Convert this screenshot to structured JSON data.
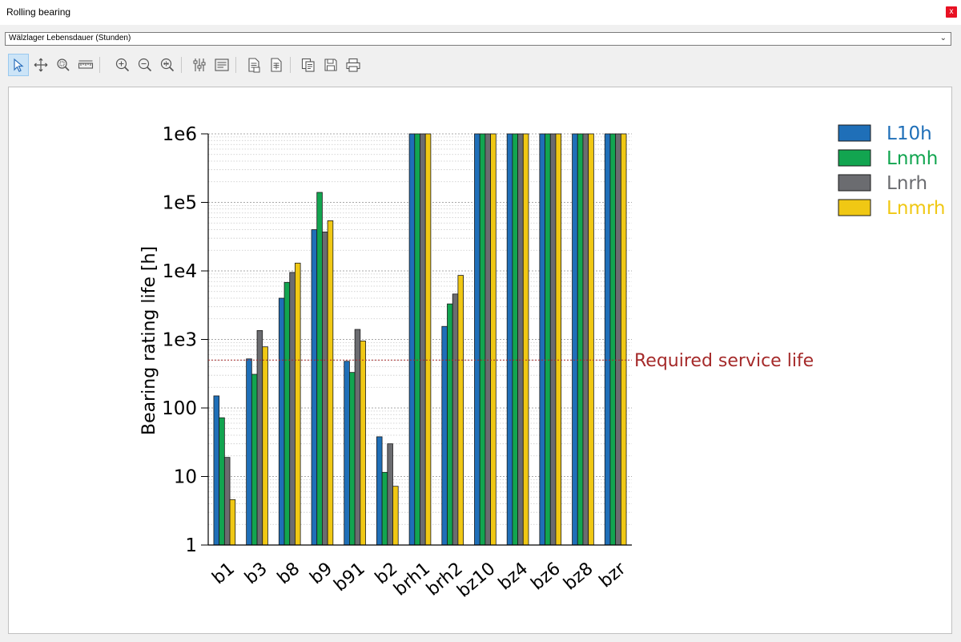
{
  "window": {
    "title": "Rolling bearing",
    "close_label": "x"
  },
  "selector": {
    "value": "Wälzlager Lebensdauer (Stunden)"
  },
  "toolbar": {
    "tools": [
      {
        "name": "select-tool-button",
        "icon": "cursor-icon"
      },
      {
        "name": "pan-tool-button",
        "icon": "pan-icon"
      },
      {
        "name": "zoom-box-button",
        "icon": "zoom-box-icon"
      },
      {
        "name": "measure-tool-button",
        "icon": "ruler-icon"
      },
      {
        "name": "zoom-in-button",
        "icon": "zoom-in-icon"
      },
      {
        "name": "zoom-out-button",
        "icon": "zoom-out-icon"
      },
      {
        "name": "zoom-fit-button",
        "icon": "zoom-fit-icon"
      },
      {
        "name": "settings-button",
        "icon": "sliders-icon"
      },
      {
        "name": "legend-button",
        "icon": "list-icon"
      },
      {
        "name": "export-data-button",
        "icon": "export-icon"
      },
      {
        "name": "export-table-button",
        "icon": "table-export-icon"
      },
      {
        "name": "copy-button",
        "icon": "copy-icon"
      },
      {
        "name": "save-button",
        "icon": "floppy-icon"
      },
      {
        "name": "print-button",
        "icon": "printer-icon"
      }
    ]
  },
  "chart_data": {
    "type": "bar",
    "title": "",
    "xlabel": "",
    "ylabel": "Bearing rating life [h]",
    "yscale": "log",
    "ylim": [
      1,
      1000000
    ],
    "yticks": [
      {
        "value": 1,
        "label": "1"
      },
      {
        "value": 10,
        "label": "10"
      },
      {
        "value": 100,
        "label": "100"
      },
      {
        "value": 1000,
        "label": "1e3"
      },
      {
        "value": 10000,
        "label": "1e4"
      },
      {
        "value": 100000,
        "label": "1e5"
      },
      {
        "value": 1000000,
        "label": "1e6"
      }
    ],
    "categories": [
      "b1",
      "b3",
      "b8",
      "b9",
      "b91",
      "b2",
      "brh1",
      "brh2",
      "bz10",
      "bz4",
      "bz6",
      "bz8",
      "bzr"
    ],
    "series": [
      {
        "name": "L10h",
        "color": "#1f6fb8",
        "values": [
          150,
          520,
          4000,
          40000,
          480,
          38,
          1000000,
          1550,
          1000000,
          1000000,
          1000000,
          1000000,
          1000000
        ]
      },
      {
        "name": "Lnmh",
        "color": "#12a550",
        "values": [
          72,
          310,
          6800,
          140000,
          330,
          11.5,
          1000000,
          3300,
          1000000,
          1000000,
          1000000,
          1000000,
          1000000
        ]
      },
      {
        "name": "Lnrh",
        "color": "#6b6c70",
        "values": [
          19,
          1350,
          9500,
          37000,
          1400,
          30,
          1000000,
          4600,
          1000000,
          1000000,
          1000000,
          1000000,
          1000000
        ]
      },
      {
        "name": "Lnmrh",
        "color": "#f0c814",
        "values": [
          4.6,
          780,
          13000,
          54000,
          950,
          7.2,
          1000000,
          8600,
          1000000,
          1000000,
          1000000,
          1000000,
          1000000
        ]
      }
    ],
    "reference_line": {
      "value": 500,
      "label": "Required service life",
      "color": "#a52a2a"
    },
    "grid": true,
    "legend_position": "top-right"
  }
}
